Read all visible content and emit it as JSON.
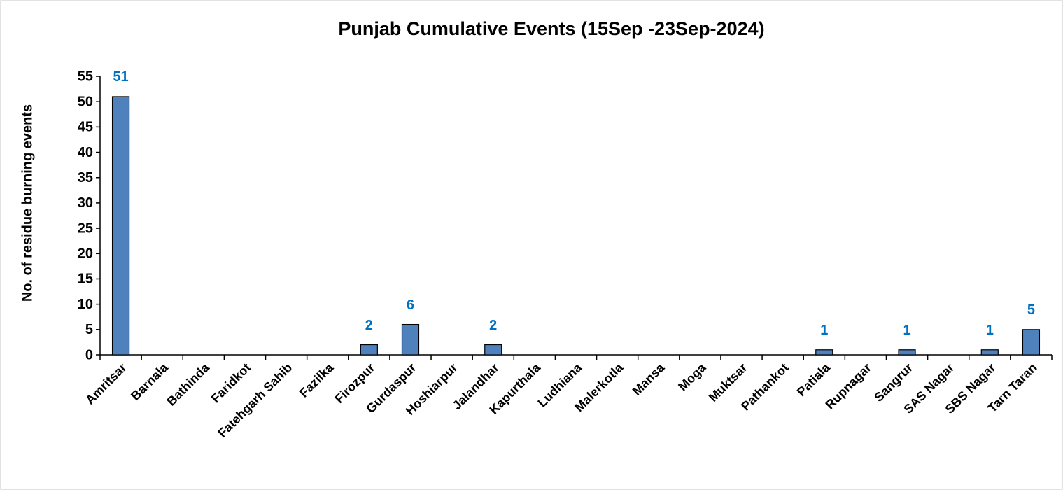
{
  "chart_data": {
    "type": "bar",
    "title": "Punjab Cumulative Events (15Sep -23Sep-2024)",
    "y_label": "No. of residue burning events",
    "categories": [
      "Amritsar",
      "Barnala",
      "Bathinda",
      "Faridkot",
      "Fatehgarh Sahib",
      "Fazilka",
      "Firozpur",
      "Gurdaspur",
      "Hoshiarpur",
      "Jalandhar",
      "Kapurthala",
      "Ludhiana",
      "Malerkotla",
      "Mansa",
      "Moga",
      "Muktsar",
      "Pathankot",
      "Patiala",
      "Rupnagar",
      "Sangrur",
      "SAS Nagar",
      "SBS Nagar",
      "Tarn Taran"
    ],
    "values": [
      51,
      0,
      0,
      0,
      0,
      0,
      2,
      6,
      0,
      2,
      0,
      0,
      0,
      0,
      0,
      0,
      0,
      1,
      0,
      1,
      0,
      1,
      5
    ],
    "color": "#4f81bd",
    "label_color": "#0070c0",
    "ylim": [
      0,
      55
    ],
    "yticks": [
      0,
      5,
      10,
      15,
      20,
      25,
      30,
      35,
      40,
      45,
      50,
      55
    ],
    "grid": false
  }
}
